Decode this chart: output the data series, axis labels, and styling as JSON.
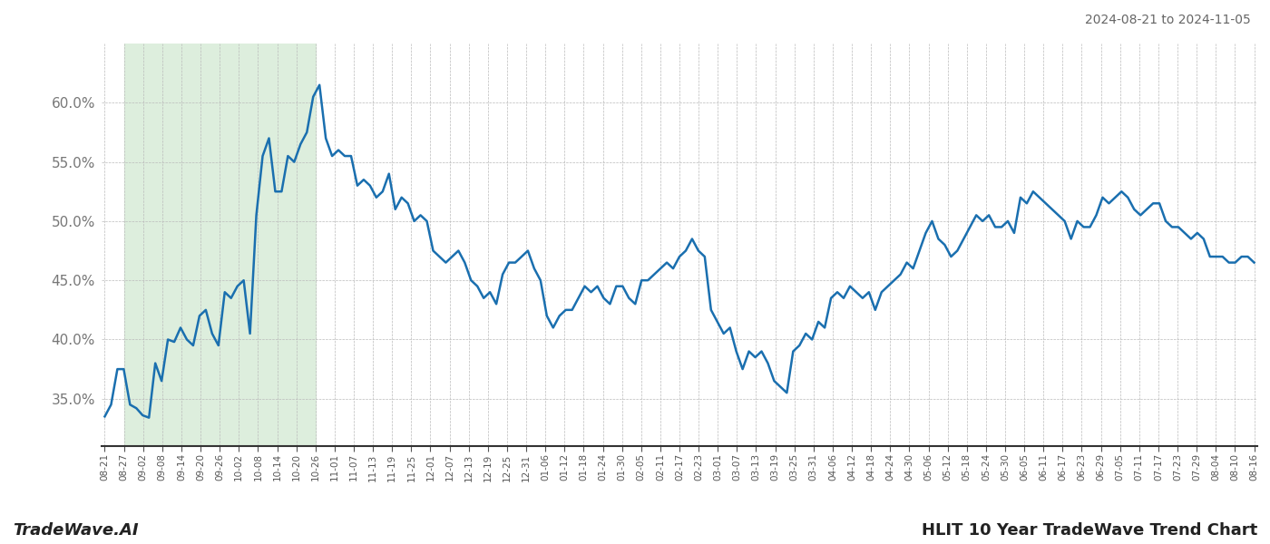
{
  "title_top_right": "2024-08-21 to 2024-11-05",
  "title_bottom_left": "TradeWave.AI",
  "title_bottom_right": "HLIT 10 Year TradeWave Trend Chart",
  "line_color": "#1a6faf",
  "line_width": 1.8,
  "bg_color": "#ffffff",
  "grid_color": "#bbbbbb",
  "highlight_color": "#ddeedd",
  "ylim": [
    31.0,
    65.0
  ],
  "yticks": [
    35.0,
    40.0,
    45.0,
    50.0,
    55.0,
    60.0
  ],
  "x_labels": [
    "08-21",
    "08-27",
    "09-02",
    "09-08",
    "09-14",
    "09-20",
    "09-26",
    "10-02",
    "10-08",
    "10-14",
    "10-20",
    "10-26",
    "11-01",
    "11-07",
    "11-13",
    "11-19",
    "11-25",
    "12-01",
    "12-07",
    "12-13",
    "12-19",
    "12-25",
    "12-31",
    "01-06",
    "01-12",
    "01-18",
    "01-24",
    "01-30",
    "02-05",
    "02-11",
    "02-17",
    "02-23",
    "03-01",
    "03-07",
    "03-13",
    "03-19",
    "03-25",
    "03-31",
    "04-06",
    "04-12",
    "04-18",
    "04-24",
    "04-30",
    "05-06",
    "05-12",
    "05-18",
    "05-24",
    "05-30",
    "06-05",
    "06-11",
    "06-17",
    "06-23",
    "06-29",
    "07-05",
    "07-11",
    "07-17",
    "07-23",
    "07-29",
    "08-04",
    "08-10",
    "08-16"
  ],
  "highlight_label_start": "08-27",
  "highlight_label_end": "10-26",
  "values": [
    33.5,
    34.5,
    37.5,
    37.5,
    34.5,
    34.2,
    33.6,
    33.4,
    38.0,
    36.5,
    40.0,
    39.8,
    41.0,
    40.0,
    39.5,
    42.0,
    42.5,
    40.5,
    39.5,
    44.0,
    43.5,
    44.5,
    45.0,
    40.5,
    50.5,
    55.5,
    57.0,
    52.5,
    52.5,
    55.5,
    55.0,
    56.5,
    57.5,
    60.5,
    61.5,
    57.0,
    55.5,
    56.0,
    55.5,
    55.5,
    53.0,
    53.5,
    53.0,
    52.0,
    52.5,
    54.0,
    51.0,
    52.0,
    51.5,
    50.0,
    50.5,
    50.0,
    47.5,
    47.0,
    46.5,
    47.0,
    47.5,
    46.5,
    45.0,
    44.5,
    43.5,
    44.0,
    43.0,
    45.5,
    46.5,
    46.5,
    47.0,
    47.5,
    46.0,
    45.0,
    42.0,
    41.0,
    42.0,
    42.5,
    42.5,
    43.5,
    44.5,
    44.0,
    44.5,
    43.5,
    43.0,
    44.5,
    44.5,
    43.5,
    43.0,
    45.0,
    45.0,
    45.5,
    46.0,
    46.5,
    46.0,
    47.0,
    47.5,
    48.5,
    47.5,
    47.0,
    42.5,
    41.5,
    40.5,
    41.0,
    39.0,
    37.5,
    39.0,
    38.5,
    39.0,
    38.0,
    36.5,
    36.0,
    35.5,
    39.0,
    39.5,
    40.5,
    40.0,
    41.5,
    41.0,
    43.5,
    44.0,
    43.5,
    44.5,
    44.0,
    43.5,
    44.0,
    42.5,
    44.0,
    44.5,
    45.0,
    45.5,
    46.5,
    46.0,
    47.5,
    49.0,
    50.0,
    48.5,
    48.0,
    47.0,
    47.5,
    48.5,
    49.5,
    50.5,
    50.0,
    50.5,
    49.5,
    49.5,
    50.0,
    49.0,
    52.0,
    51.5,
    52.5,
    52.0,
    51.5,
    51.0,
    50.5,
    50.0,
    48.5,
    50.0,
    49.5,
    49.5,
    50.5,
    52.0,
    51.5,
    52.0,
    52.5,
    52.0,
    51.0,
    50.5,
    51.0,
    51.5,
    51.5,
    50.0,
    49.5,
    49.5,
    49.0,
    48.5,
    49.0,
    48.5,
    47.0,
    47.0,
    47.0,
    46.5,
    46.5,
    47.0,
    47.0,
    46.5
  ]
}
